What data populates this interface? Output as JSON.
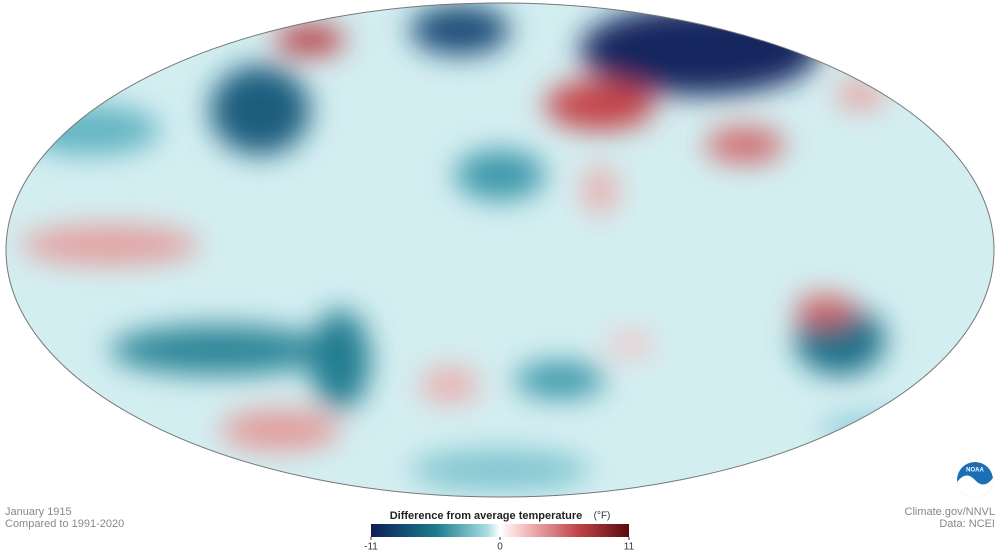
{
  "map": {
    "footer_left": {
      "line1": "January 1915",
      "line2": "Compared to 1991-2020"
    },
    "footer_right": {
      "line1": "Climate.gov/NNVL",
      "line2": "Data: NCEI"
    },
    "logo": "NOAA",
    "legend": {
      "title": "Difference from average temperature",
      "unit": "(°F)",
      "range": [
        -11,
        11
      ],
      "ticks": [
        -11,
        0,
        11
      ]
    }
  }
}
